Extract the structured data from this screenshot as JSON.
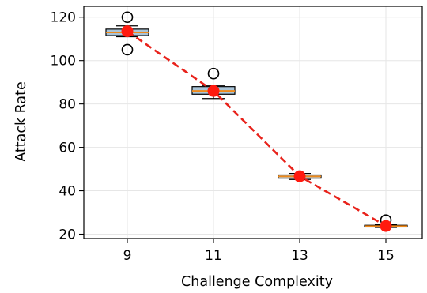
{
  "chart_data": {
    "type": "box",
    "title": "",
    "xlabel": "Challenge Complexity",
    "ylabel": "Attack Rate",
    "x_ticks": [
      "9",
      "11",
      "13",
      "15"
    ],
    "y_ticks": [
      "20",
      "40",
      "60",
      "80",
      "100",
      "120"
    ],
    "ylim": [
      18,
      125
    ],
    "grid": true,
    "boxes": [
      {
        "x": 9,
        "q1": 111.5,
        "median": 113,
        "q3": 114.5,
        "whisker_low": 111,
        "whisker_high": 116,
        "outliers": [
          120,
          105
        ]
      },
      {
        "x": 11,
        "q1": 84.5,
        "median": 86,
        "q3": 88,
        "whisker_low": 82.5,
        "whisker_high": 88.5,
        "outliers": [
          94
        ]
      },
      {
        "x": 13,
        "q1": 45.8,
        "median": 46.6,
        "q3": 47.3,
        "whisker_low": 45.2,
        "whisker_high": 48,
        "outliers": []
      },
      {
        "x": 15,
        "q1": 23.3,
        "median": 23.7,
        "q3": 24.1,
        "whisker_low": 23.1,
        "whisker_high": 24.4,
        "outliers": [
          26.5
        ]
      }
    ],
    "mean_line": {
      "x": [
        9,
        11,
        13,
        15
      ],
      "y": [
        113.5,
        86,
        46.7,
        23.8
      ],
      "color": "#e8221b",
      "marker_color": "#ff1a0f",
      "style": "dashed"
    },
    "box_fill": "#a9c4d8",
    "median_color": "#f08a1a"
  }
}
